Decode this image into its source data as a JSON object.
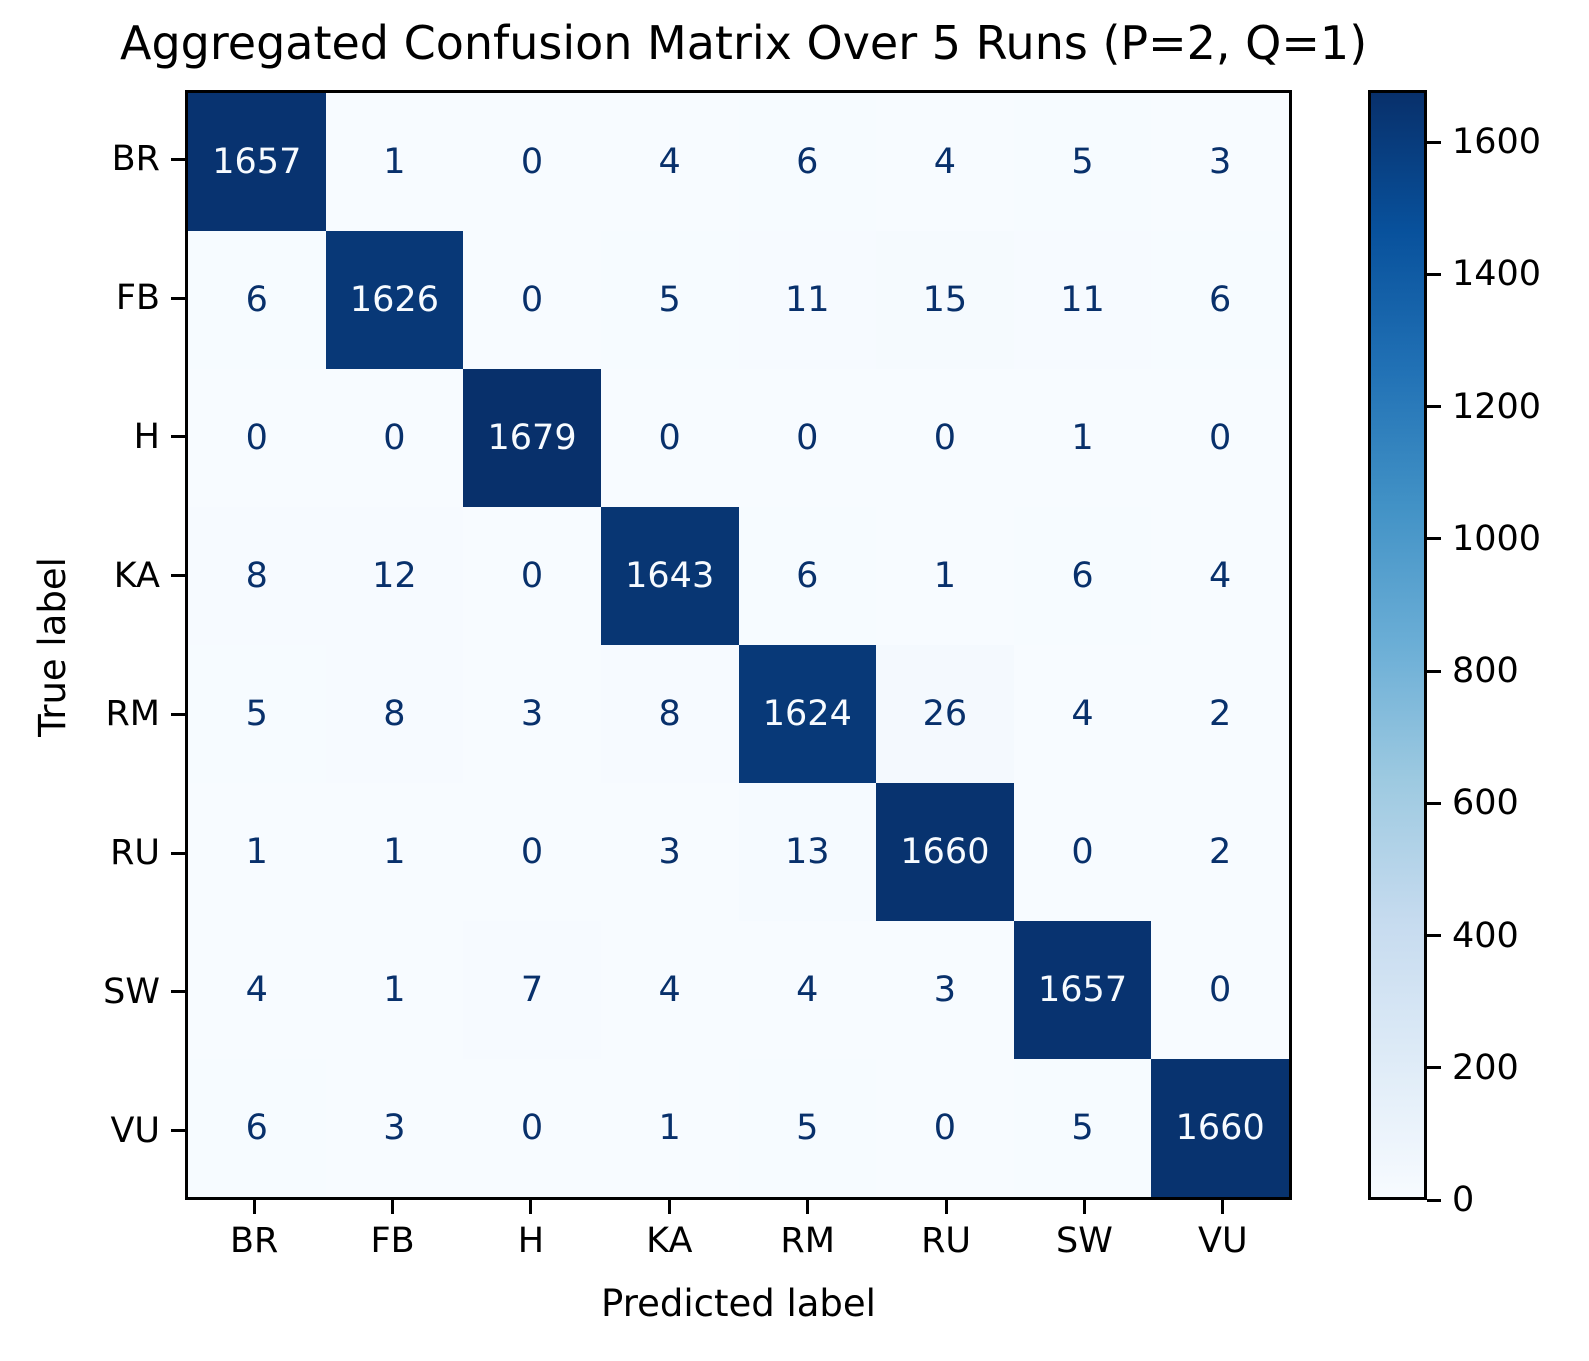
{
  "chart_data": {
    "type": "heatmap",
    "title": "Aggregated Confusion Matrix Over 5 Runs (P=2, Q=1)",
    "xlabel": "Predicted label",
    "ylabel": "True label",
    "x_tick_labels": [
      "BR",
      "FB",
      "H",
      "KA",
      "RM",
      "RU",
      "SW",
      "VU"
    ],
    "y_tick_labels": [
      "BR",
      "FB",
      "H",
      "KA",
      "RM",
      "RU",
      "SW",
      "VU"
    ],
    "matrix": [
      [
        1657,
        1,
        0,
        4,
        6,
        4,
        5,
        3
      ],
      [
        6,
        1626,
        0,
        5,
        11,
        15,
        11,
        6
      ],
      [
        0,
        0,
        1679,
        0,
        0,
        0,
        1,
        0
      ],
      [
        8,
        12,
        0,
        1643,
        6,
        1,
        6,
        4
      ],
      [
        5,
        8,
        3,
        8,
        1624,
        26,
        4,
        2
      ],
      [
        1,
        1,
        0,
        3,
        13,
        1660,
        0,
        2
      ],
      [
        4,
        1,
        7,
        4,
        4,
        3,
        1657,
        0
      ],
      [
        6,
        3,
        0,
        1,
        5,
        0,
        5,
        1660
      ]
    ],
    "vmin": 0,
    "vmax": 1679,
    "colorbar_ticks": [
      0,
      200,
      400,
      600,
      800,
      1000,
      1200,
      1400,
      1600
    ],
    "colormap": {
      "name": "Blues",
      "stops": [
        "#f7fbff",
        "#deebf7",
        "#c6dbef",
        "#9ecae1",
        "#6baed6",
        "#4292c6",
        "#2171b5",
        "#08519c",
        "#08306b"
      ]
    },
    "annotation_colors": {
      "dark_text": "#08306b",
      "light_text": "#f7fbff"
    },
    "spine_color": "#000000",
    "legend_position": "right-colorbar",
    "grid": false
  }
}
